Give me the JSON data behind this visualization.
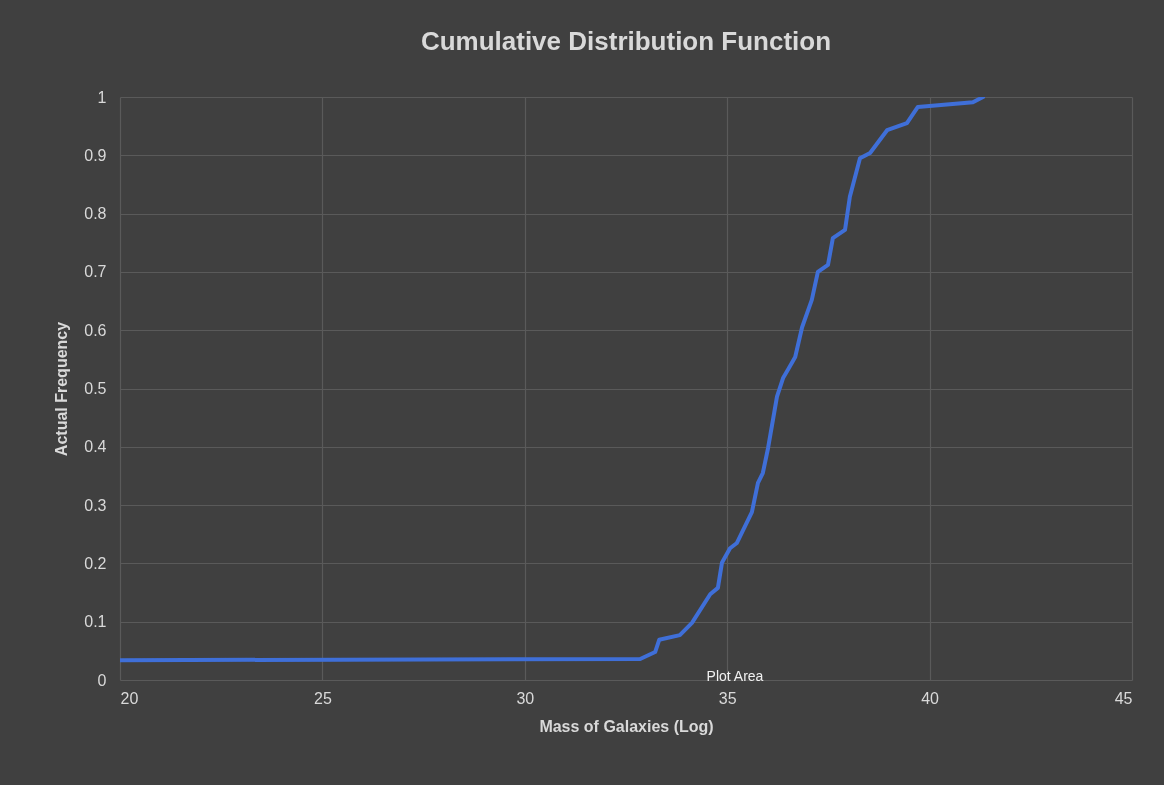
{
  "chart_data": {
    "type": "line",
    "title": "Cumulative Distribution Function",
    "xlabel": "Mass of Galaxies (Log)",
    "ylabel": "Actual Frequency",
    "xlim": [
      20,
      45
    ],
    "xticks": [
      20,
      25,
      30,
      35,
      40,
      45
    ],
    "ylim": [
      0,
      1
    ],
    "yticks": [
      0,
      0.1,
      0.2,
      0.3,
      0.4,
      0.5,
      0.6,
      0.7,
      0.8,
      0.9,
      1
    ],
    "grid": true,
    "line_style": "solid",
    "marker": "none",
    "annotations": [
      "Plot Area"
    ],
    "series": [
      {
        "color": "#3f6fd8",
        "x": [
          20,
          32.85,
          33.22,
          33.32,
          33.83,
          34.13,
          34.58,
          34.77,
          34.87,
          35.07,
          35.24,
          35.61,
          35.76,
          35.88,
          36.01,
          36.23,
          36.38,
          36.5,
          36.68,
          36.85,
          37.09,
          37.24,
          37.49,
          37.61,
          37.91,
          38.03,
          38.28,
          38.53,
          38.82,
          38.95,
          39.44,
          39.71,
          41.07,
          41.32
        ],
        "values": [
          0.034,
          0.036,
          0.048,
          0.069,
          0.077,
          0.098,
          0.147,
          0.158,
          0.201,
          0.226,
          0.235,
          0.288,
          0.338,
          0.355,
          0.398,
          0.486,
          0.518,
          0.532,
          0.554,
          0.605,
          0.652,
          0.7,
          0.712,
          0.758,
          0.772,
          0.829,
          0.895,
          0.904,
          0.931,
          0.943,
          0.955,
          0.983,
          0.991,
          1.0
        ]
      }
    ]
  }
}
